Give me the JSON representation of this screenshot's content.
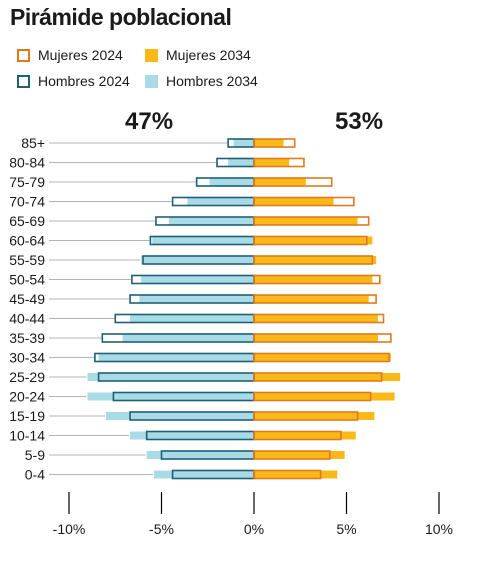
{
  "title": "Pirámide poblacional",
  "legend": {
    "mujeres_2024": "Mujeres 2024",
    "mujeres_2034": "Mujeres 2034",
    "hombres_2024": "Hombres 2024",
    "hombres_2034": "Hombres 2034"
  },
  "totals": {
    "hombres_pct": "47%",
    "mujeres_pct": "53%"
  },
  "colors": {
    "hombres_2024_outline": "#1f5f78",
    "hombres_2034_fill": "#a8dbe6",
    "mujeres_2024_outline": "#e07a1e",
    "mujeres_2034_fill": "#fbb918",
    "axis": "#000000",
    "leader": "#b3b3b3"
  },
  "chart_data": {
    "type": "bar",
    "orientation": "horizontal-pyramid",
    "categories": [
      "85+",
      "80-84",
      "75-79",
      "70-74",
      "65-69",
      "60-64",
      "55-59",
      "50-54",
      "45-49",
      "40-44",
      "35-39",
      "30-34",
      "25-29",
      "20-24",
      "15-19",
      "10-14",
      "5-9",
      "0-4"
    ],
    "series": [
      {
        "name": "Hombres 2024",
        "values": [
          -1.4,
          -2.0,
          -3.1,
          -4.4,
          -5.3,
          -5.6,
          -6.0,
          -6.6,
          -6.7,
          -7.5,
          -8.2,
          -8.6,
          -8.4,
          -7.6,
          -6.7,
          -5.8,
          -5.0,
          -4.4
        ]
      },
      {
        "name": "Hombres 2034",
        "values": [
          -1.1,
          -1.4,
          -2.4,
          -3.6,
          -4.6,
          -5.5,
          -6.1,
          -6.1,
          -6.2,
          -6.7,
          -7.1,
          -8.4,
          -9.0,
          -9.0,
          -8.0,
          -6.7,
          -5.8,
          -5.4
        ]
      },
      {
        "name": "Mujeres 2024",
        "values": [
          2.2,
          2.7,
          4.2,
          5.4,
          6.2,
          6.1,
          6.4,
          6.8,
          6.6,
          7.0,
          7.4,
          7.3,
          6.9,
          6.3,
          5.6,
          4.7,
          4.1,
          3.6
        ]
      },
      {
        "name": "Mujeres 2034",
        "values": [
          1.6,
          1.9,
          2.8,
          4.3,
          5.6,
          6.4,
          6.6,
          6.4,
          6.2,
          6.7,
          6.7,
          7.4,
          7.9,
          7.6,
          6.5,
          5.5,
          4.9,
          4.5
        ]
      }
    ],
    "xlim": [
      -10,
      10
    ],
    "xticks": [
      -10,
      -5,
      0,
      5,
      10
    ],
    "xtick_labels": [
      "-10%",
      "-5%",
      "0%",
      "5%",
      "10%"
    ],
    "legend_position": "top-left"
  }
}
